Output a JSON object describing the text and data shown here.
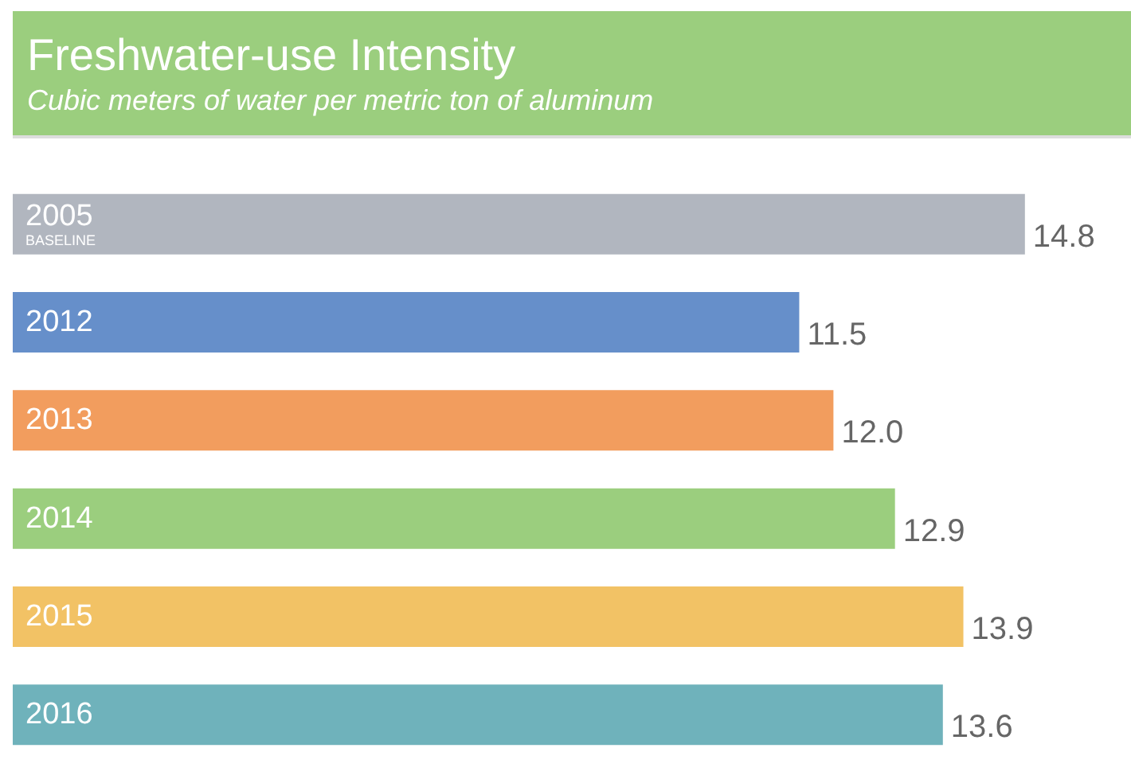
{
  "chart_data": {
    "type": "bar",
    "orientation": "horizontal",
    "title": "Freshwater-use Intensity",
    "subtitle": "Cubic meters of water per metric ton of aluminum",
    "categories": [
      "2005\nBASELINE",
      "2012",
      "2013",
      "2014",
      "2015",
      "2016"
    ],
    "values": [
      14.8,
      11.5,
      12.0,
      12.9,
      13.9,
      13.6
    ],
    "value_labels": [
      "14.8",
      "11.5",
      "12.0",
      "12.9",
      "13.9",
      "13.6"
    ],
    "colors": [
      "#b1b6bf",
      "#668fca",
      "#f29d5e",
      "#9bce7e",
      "#f2c265",
      "#6fb2bb"
    ],
    "grid": false
  }
}
